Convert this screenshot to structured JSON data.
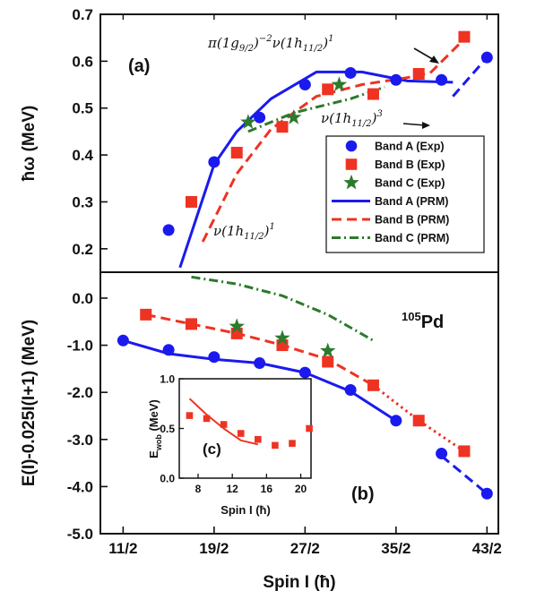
{
  "chart_data": [
    {
      "panel": "(a)",
      "type": "scatter",
      "xlabel": "",
      "ylabel": "ħω (MeV)",
      "xlim": [
        4.5,
        22.0
      ],
      "ylim": [
        0.15,
        0.7
      ],
      "yticks": [
        "0.2",
        "0.3",
        "0.4",
        "0.5",
        "0.6",
        "0.7"
      ],
      "yticks_values": [
        0.2,
        0.3,
        0.4,
        0.5,
        0.6,
        0.7
      ],
      "annotations": [
        {
          "text": "π(1g9/2)^-2 ν(1h11/2)^1",
          "target": [
            20.5,
            0.655
          ]
        },
        {
          "text": "ν(1h11/2)^3",
          "target": [
            20.0,
            0.515
          ]
        },
        {
          "text": "ν(1h11/2)^1",
          "target": null
        }
      ],
      "legend_position": "bottom-right",
      "series": [
        {
          "name": "Band A (Exp)",
          "kind": "points",
          "marker": "circle",
          "color": "#1a1aee",
          "x": [
            7.5,
            9.5,
            11.5,
            13.5,
            15.5,
            17.5,
            19.5,
            21.5
          ],
          "y": [
            0.24,
            0.385,
            0.48,
            0.55,
            0.575,
            0.56,
            0.56,
            0.608
          ]
        },
        {
          "name": "Band B (Exp)",
          "kind": "points",
          "marker": "square",
          "color": "#ee3322",
          "x": [
            8.5,
            10.5,
            12.5,
            14.5,
            16.5,
            18.5,
            20.5
          ],
          "y": [
            0.3,
            0.405,
            0.46,
            0.54,
            0.53,
            0.573,
            0.652
          ]
        },
        {
          "name": "Band C (Exp)",
          "kind": "points",
          "marker": "star",
          "color": "#2d7a2d",
          "x": [
            11,
            13,
            15
          ],
          "y": [
            0.47,
            0.48,
            0.55
          ]
        },
        {
          "name": "Band A (PRM)",
          "kind": "line",
          "style": "solid",
          "color": "#1a1aee",
          "x": [
            8.0,
            9.5,
            10.5,
            12.0,
            14.0,
            16.0,
            18.0,
            20.0
          ],
          "y": [
            0.16,
            0.38,
            0.45,
            0.52,
            0.577,
            0.577,
            0.558,
            0.555
          ]
        },
        {
          "name": "Band A (PRM) continuation",
          "kind": "line",
          "style": "dashed",
          "color": "#1a1aee",
          "x": [
            20.0,
            21.5
          ],
          "y": [
            0.525,
            0.608
          ]
        },
        {
          "name": "Band B (PRM)",
          "kind": "line",
          "style": "dashed",
          "color": "#ee3322",
          "x": [
            9.0,
            10.5,
            12.0,
            14.0,
            16.0,
            18.0,
            19.0,
            20.6
          ],
          "y": [
            0.215,
            0.36,
            0.455,
            0.525,
            0.55,
            0.565,
            0.575,
            0.652
          ]
        },
        {
          "name": "Band C (PRM)",
          "kind": "line",
          "style": "dashdot",
          "color": "#2d7a2d",
          "x": [
            11.0,
            13.0,
            15.5,
            17.0
          ],
          "y": [
            0.45,
            0.49,
            0.52,
            0.545
          ]
        }
      ]
    },
    {
      "panel": "(b)",
      "type": "scatter",
      "xlabel": "Spin I (ħ)",
      "ylabel": "E(I)-0.025I(I+1) (MeV)",
      "xlim": [
        4.5,
        22.0
      ],
      "ylim": [
        -5.0,
        0.55
      ],
      "xticks": [
        "11/2",
        "19/2",
        "27/2",
        "35/2",
        "43/2"
      ],
      "xticks_values": [
        5.5,
        9.5,
        13.5,
        17.5,
        21.5
      ],
      "yticks": [
        "0.0",
        "-1.0",
        "-2.0",
        "-3.0",
        "-4.0",
        "-5.0"
      ],
      "yticks_values": [
        0,
        -1,
        -2,
        -3,
        -4,
        -5
      ],
      "nucleus": "105Pd",
      "series": [
        {
          "name": "Band A (Exp)",
          "kind": "points",
          "marker": "circle",
          "color": "#1a1aee",
          "x": [
            5.5,
            7.5,
            9.5,
            11.5,
            13.5,
            15.5,
            17.5,
            19.5,
            21.5
          ],
          "y": [
            -0.9,
            -1.1,
            -1.25,
            -1.38,
            -1.58,
            -1.95,
            -2.6,
            -3.3,
            -4.15
          ]
        },
        {
          "name": "Band B (Exp)",
          "kind": "points",
          "marker": "square",
          "color": "#ee3322",
          "x": [
            6.5,
            8.5,
            10.5,
            12.5,
            14.5,
            16.5,
            18.5,
            20.5
          ],
          "y": [
            -0.35,
            -0.55,
            -0.75,
            -1.0,
            -1.35,
            -1.85,
            -2.6,
            -3.25
          ]
        },
        {
          "name": "Band C (Exp)",
          "kind": "points",
          "marker": "star",
          "color": "#2d7a2d",
          "x": [
            10.5,
            12.5,
            14.5
          ],
          "y": [
            -0.6,
            -0.85,
            -1.12
          ]
        },
        {
          "name": "Band A (PRM)",
          "kind": "line",
          "style": "solid",
          "color": "#1a1aee",
          "x": [
            5.5,
            7.5,
            9.5,
            11.5,
            13.5,
            15.5,
            17.5
          ],
          "y": [
            -0.9,
            -1.18,
            -1.3,
            -1.38,
            -1.58,
            -1.98,
            -2.6
          ]
        },
        {
          "name": "Band A (PRM) continuation",
          "kind": "line",
          "style": "dashed",
          "color": "#1a1aee",
          "x": [
            19.5,
            21.5
          ],
          "y": [
            -3.35,
            -4.15
          ]
        },
        {
          "name": "Band B (PRM)",
          "kind": "line",
          "style": "dashed",
          "color": "#ee3322",
          "x": [
            6.5,
            8.5,
            10.5,
            12.5,
            14.5,
            16.5
          ],
          "y": [
            -0.35,
            -0.55,
            -0.75,
            -1.0,
            -1.3,
            -1.85
          ]
        },
        {
          "name": "Band B (PRM) dotted",
          "kind": "line",
          "style": "dotted",
          "color": "#ee3322",
          "x": [
            16.5,
            18.5,
            20.5
          ],
          "y": [
            -1.85,
            -2.6,
            -3.25
          ]
        },
        {
          "name": "Band C (PRM)",
          "kind": "line",
          "style": "dashdot",
          "color": "#2d7a2d",
          "x": [
            8.5,
            10.5,
            12.5,
            14.5,
            16.5
          ],
          "y": [
            0.45,
            0.3,
            0.05,
            -0.35,
            -0.9
          ]
        }
      ]
    },
    {
      "panel": "(c)",
      "type": "scatter",
      "inset": true,
      "xlabel": "Spin I (ħ)",
      "ylabel": "Ewob (MeV)",
      "xlim": [
        5.8,
        21.2
      ],
      "ylim": [
        0.0,
        1.0
      ],
      "xticks": [
        "8",
        "12",
        "16",
        "20"
      ],
      "xticks_values": [
        8,
        12,
        16,
        20
      ],
      "yticks": [
        "0.0",
        "0.5",
        "1.0"
      ],
      "yticks_values": [
        0.0,
        0.5,
        1.0
      ],
      "series": [
        {
          "name": "Exp",
          "kind": "points",
          "marker": "square",
          "color": "#ee3322",
          "x": [
            7,
            9,
            11,
            13,
            15,
            17,
            19,
            21
          ],
          "y": [
            0.63,
            0.6,
            0.54,
            0.45,
            0.39,
            0.33,
            0.35,
            0.5
          ]
        },
        {
          "name": "PRM",
          "kind": "line",
          "style": "solid",
          "color": "#ee3322",
          "x": [
            7,
            9,
            11,
            13,
            15
          ],
          "y": [
            0.8,
            0.64,
            0.5,
            0.38,
            0.34
          ]
        }
      ]
    }
  ]
}
